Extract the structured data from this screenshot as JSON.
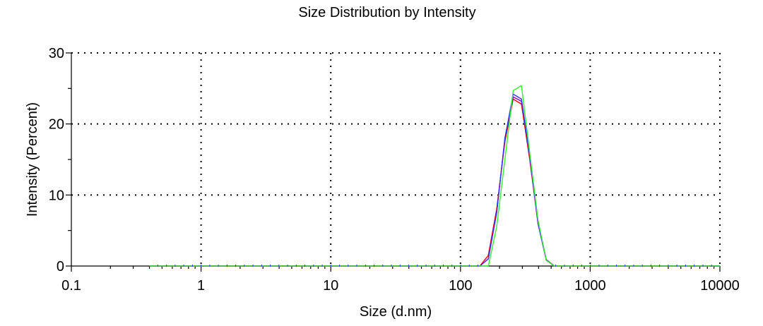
{
  "chart_data": {
    "type": "line",
    "title": "Size Distribution by Intensity",
    "xlabel": "Size (d.nm)",
    "ylabel": "Intensity (Percent)",
    "x_scale": "log",
    "xlim": [
      0.1,
      10000
    ],
    "ylim": [
      0,
      30
    ],
    "x_tick_labels": [
      "0.1",
      "1",
      "10",
      "100",
      "1000",
      "10000"
    ],
    "x_tick_values": [
      0.1,
      1,
      10,
      100,
      1000,
      10000
    ],
    "y_tick_labels": [
      "0",
      "10",
      "20",
      "30"
    ],
    "y_tick_values": [
      0,
      10,
      20,
      30
    ],
    "grid": "dotted",
    "legend": "none",
    "series": [
      {
        "color": "#ff0000",
        "points": [
          [
            0.4,
            0
          ],
          [
            100,
            0
          ],
          [
            141,
            0
          ],
          [
            164,
            1.5
          ],
          [
            190,
            8
          ],
          [
            220,
            17.5
          ],
          [
            255,
            23.5
          ],
          [
            295,
            22.8
          ],
          [
            342,
            15
          ],
          [
            396,
            6
          ],
          [
            459,
            0.8
          ],
          [
            531,
            0
          ],
          [
            1000,
            0
          ],
          [
            10000,
            0
          ]
        ]
      },
      {
        "color": "#8b00b5",
        "points": [
          [
            0.4,
            0
          ],
          [
            100,
            0
          ],
          [
            141,
            0
          ],
          [
            164,
            1
          ],
          [
            190,
            7.5
          ],
          [
            220,
            18
          ],
          [
            255,
            23.8
          ],
          [
            295,
            23.2
          ],
          [
            342,
            15.5
          ],
          [
            396,
            6.2
          ],
          [
            459,
            0.9
          ],
          [
            531,
            0
          ],
          [
            1000,
            0
          ],
          [
            10000,
            0
          ]
        ]
      },
      {
        "color": "#3333ff",
        "points": [
          [
            0.4,
            0
          ],
          [
            100,
            0
          ],
          [
            141,
            0
          ],
          [
            164,
            1
          ],
          [
            190,
            7.5
          ],
          [
            220,
            18
          ],
          [
            255,
            24.2
          ],
          [
            295,
            23.5
          ],
          [
            342,
            15.5
          ],
          [
            396,
            6
          ],
          [
            459,
            0.8
          ],
          [
            531,
            0
          ],
          [
            1000,
            0
          ],
          [
            10000,
            0
          ]
        ]
      },
      {
        "color": "#33ee33",
        "points": [
          [
            0.4,
            0
          ],
          [
            100,
            0
          ],
          [
            150,
            0
          ],
          [
            164,
            0
          ],
          [
            190,
            5.5
          ],
          [
            220,
            15
          ],
          [
            255,
            24.7
          ],
          [
            295,
            25.4
          ],
          [
            342,
            16
          ],
          [
            396,
            6.5
          ],
          [
            459,
            0.8
          ],
          [
            531,
            0
          ],
          [
            1000,
            0
          ],
          [
            10000,
            0
          ]
        ]
      }
    ]
  }
}
